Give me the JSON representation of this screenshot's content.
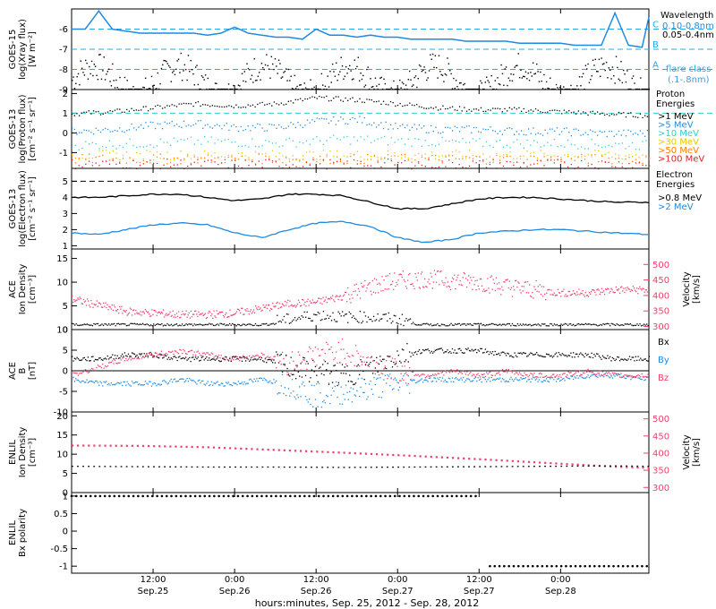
{
  "colors": {
    "black": "#000000",
    "blue": "#1f8ae0",
    "cyan": "#33cccc",
    "lightblue": "#2aa7e8",
    "yellow": "#e8c800",
    "orange": "#ff7f00",
    "red": "#e02020",
    "pink": "#f0406a"
  },
  "x_axis": {
    "tick_times": [
      "12:00",
      "0:00",
      "12:00",
      "0:00",
      "12:00",
      "0:00"
    ],
    "tick_dates": [
      "Sep.25",
      "Sep.26",
      "Sep.26",
      "Sep.27",
      "Sep.27",
      "Sep.28"
    ],
    "xlabel": "hours:minutes, Sep. 25, 2012 - Sep. 28, 2012"
  },
  "chart_data": [
    {
      "type": "line",
      "panel": "goes15-xray",
      "ylabel_line1": "GOES-15",
      "ylabel_line2": "log(Xray flux)",
      "ylabel_units": "[W m⁻²]",
      "ylim": [
        -9,
        -5
      ],
      "yticks": [
        -9,
        -8,
        -7,
        -6
      ],
      "legend_title": "Wavelength",
      "legend": [
        {
          "label": "0.10-0.8nm",
          "color": "#1f8ae0"
        },
        {
          "label": "0.05-0.4nm",
          "color": "#000000"
        }
      ],
      "reference_lines": [
        {
          "y": -6,
          "label": "C"
        },
        {
          "y": -7,
          "label": "B"
        },
        {
          "y": -8,
          "label": "A"
        }
      ],
      "note_line1": "flare class",
      "note_line2": "(.1-.8nm)",
      "series": [
        {
          "color": "#1f8ae0",
          "x": [
            0,
            2,
            4,
            6,
            8,
            10,
            12,
            14,
            16,
            18,
            20,
            22,
            24,
            26,
            28,
            30,
            32,
            34,
            36,
            38,
            40,
            42,
            44,
            46,
            48,
            50,
            52,
            54,
            56,
            58,
            60,
            62,
            64,
            66,
            68,
            70,
            72,
            74,
            76,
            78,
            80,
            82,
            84,
            85
          ],
          "y": [
            -6.0,
            -6.0,
            -5.1,
            -6.0,
            -6.1,
            -6.2,
            -6.2,
            -6.2,
            -6.2,
            -6.2,
            -6.3,
            -6.2,
            -5.9,
            -6.2,
            -6.3,
            -6.4,
            -6.4,
            -6.5,
            -6.0,
            -6.3,
            -6.3,
            -6.4,
            -6.3,
            -6.4,
            -6.4,
            -6.5,
            -6.5,
            -6.5,
            -6.5,
            -6.6,
            -6.6,
            -6.6,
            -6.6,
            -6.7,
            -6.7,
            -6.7,
            -6.7,
            -6.8,
            -6.8,
            -6.8,
            -5.2,
            -6.8,
            -6.9,
            -5.4
          ]
        }
      ]
    },
    {
      "type": "scatter",
      "panel": "goes13-proton",
      "ylabel_line1": "GOES-13",
      "ylabel_line2": "log(Proton flux)",
      "ylabel_units": "[cm⁻² s⁻¹ sr⁻¹]",
      "ylim": [
        -1.8,
        2.2
      ],
      "yticks": [
        -1,
        0,
        1,
        2
      ],
      "legend_title_line1": "Proton",
      "legend_title_line2": "Energies",
      "legend": [
        {
          "label": ">1 MeV",
          "color": "#000000"
        },
        {
          "label": ">5 MeV",
          "color": "#1f8ae0"
        },
        {
          "label": ">10 MeV",
          "color": "#33cccc"
        },
        {
          "label": ">30 MeV",
          "color": "#e8c800"
        },
        {
          "label": ">50 MeV",
          "color": "#ff7f00"
        },
        {
          "label": ">100 MeV",
          "color": "#e02020"
        }
      ],
      "reference_line": 1,
      "series": [
        {
          "name": ">1 MeV",
          "x": [
            0,
            6,
            12,
            18,
            24,
            30,
            36,
            42,
            48,
            54,
            60,
            66,
            72,
            78,
            85
          ],
          "y": [
            1.0,
            1.1,
            1.3,
            1.5,
            1.4,
            1.5,
            1.8,
            1.7,
            1.5,
            1.3,
            1.2,
            1.2,
            1.1,
            1.0,
            0.9
          ]
        },
        {
          "name": ">5 MeV",
          "x": [
            0,
            6,
            12,
            18,
            24,
            30,
            36,
            42,
            48,
            54,
            60,
            66,
            72,
            78,
            85
          ],
          "y": [
            0.1,
            0.2,
            0.4,
            0.5,
            0.3,
            0.3,
            0.6,
            0.7,
            0.3,
            0.2,
            0.2,
            0.1,
            0.1,
            0.0,
            0.0
          ]
        },
        {
          "name": ">10 MeV",
          "x": [
            0,
            10,
            20,
            30,
            40,
            50,
            60,
            70,
            85
          ],
          "y": [
            -0.6,
            -0.5,
            -0.4,
            -0.5,
            -0.3,
            -0.4,
            -0.5,
            -0.5,
            -0.6
          ]
        },
        {
          "name": ">30 MeV",
          "x": [
            0,
            10,
            20,
            30,
            40,
            50,
            60,
            70,
            85
          ],
          "y": [
            -1.1,
            -1.1,
            -1.1,
            -1.1,
            -1.1,
            -1.1,
            -1.1,
            -1.1,
            -1.1
          ]
        },
        {
          "name": ">50 MeV",
          "x": [
            0,
            10,
            20,
            30,
            40,
            50,
            60,
            70,
            85
          ],
          "y": [
            -1.3,
            -1.3,
            -1.3,
            -1.3,
            -1.3,
            -1.3,
            -1.3,
            -1.3,
            -1.3
          ]
        },
        {
          "name": ">100 MeV",
          "x": [
            0,
            10,
            20,
            30,
            40,
            50,
            60,
            70,
            85
          ],
          "y": [
            -1.55,
            -1.55,
            -1.55,
            -1.55,
            -1.55,
            -1.55,
            -1.55,
            -1.55,
            -1.55
          ]
        }
      ]
    },
    {
      "type": "line",
      "panel": "goes13-electron",
      "ylabel_line1": "GOES-13",
      "ylabel_line2": "log(Electron flux)",
      "ylabel_units": "[cm⁻² s⁻¹ sr⁻¹]",
      "ylim": [
        0.8,
        5.8
      ],
      "yticks": [
        1,
        2,
        3,
        4,
        5
      ],
      "legend_title_line1": "Electron",
      "legend_title_line2": "Energies",
      "legend": [
        {
          "label": ">0.8 MeV",
          "color": "#000000"
        },
        {
          "label": ">2 MeV",
          "color": "#1f8ae0"
        }
      ],
      "reference_line": 5,
      "series": [
        {
          "name": ">0.8 MeV",
          "x": [
            0,
            4,
            8,
            12,
            16,
            20,
            24,
            28,
            32,
            36,
            40,
            44,
            48,
            52,
            56,
            60,
            64,
            68,
            72,
            76,
            80,
            85
          ],
          "y": [
            4.0,
            4.0,
            4.1,
            4.2,
            4.2,
            4.0,
            3.8,
            3.9,
            4.2,
            4.2,
            4.1,
            3.7,
            3.3,
            3.3,
            3.6,
            3.9,
            4.0,
            4.0,
            3.9,
            3.8,
            3.7,
            3.7
          ]
        },
        {
          "name": ">2 MeV",
          "x": [
            0,
            4,
            8,
            12,
            16,
            20,
            24,
            28,
            32,
            36,
            40,
            44,
            48,
            52,
            56,
            60,
            64,
            68,
            72,
            76,
            80,
            85
          ],
          "y": [
            1.8,
            1.7,
            2.0,
            2.3,
            2.4,
            2.3,
            1.8,
            1.5,
            2.0,
            2.4,
            2.5,
            2.2,
            1.5,
            1.2,
            1.4,
            1.8,
            1.9,
            2.0,
            2.0,
            1.9,
            1.8,
            1.7
          ]
        }
      ]
    },
    {
      "type": "scatter",
      "panel": "ace-plasma",
      "ylabel_line1": "ACE",
      "ylabel_line2": "Ion Density",
      "ylabel_units": "[cm⁻³]",
      "ylim": [
        0,
        17
      ],
      "yticks": [
        0,
        5,
        10,
        15
      ],
      "ylabel_right_line1": "Velocity",
      "ylabel_right_line2": "[km/s]",
      "ylim_right": [
        290,
        550
      ],
      "yticks_right": [
        300,
        350,
        400,
        450,
        500
      ],
      "series": [
        {
          "name": "Ion Density",
          "color": "#000000",
          "x": [
            0,
            4,
            8,
            12,
            16,
            20,
            24,
            28,
            32,
            36,
            40,
            44,
            48,
            52,
            56,
            60,
            64,
            68,
            72,
            76,
            80,
            85
          ],
          "y": [
            1.0,
            1.0,
            1.0,
            1.0,
            1.0,
            1.0,
            1.0,
            1.0,
            1.5,
            2.5,
            2.0,
            2.0,
            1.5,
            1.0,
            1.0,
            1.0,
            1.0,
            1.0,
            1.0,
            1.0,
            1.0,
            1.0
          ]
        },
        {
          "name": "Velocity",
          "color": "#f0406a",
          "axis": "right",
          "x": [
            0,
            4,
            8,
            12,
            16,
            20,
            24,
            28,
            32,
            36,
            40,
            44,
            48,
            52,
            56,
            60,
            64,
            68,
            72,
            76,
            80,
            85
          ],
          "y": [
            390,
            370,
            350,
            345,
            340,
            340,
            345,
            360,
            375,
            380,
            400,
            430,
            450,
            455,
            450,
            445,
            430,
            420,
            410,
            410,
            420,
            420
          ]
        }
      ]
    },
    {
      "type": "scatter",
      "panel": "ace-magnetic",
      "ylabel_line1": "ACE",
      "ylabel_line2": "B",
      "ylabel_units": "[nT]",
      "ylim": [
        -10,
        10
      ],
      "yticks": [
        -10,
        -5,
        0,
        5,
        10
      ],
      "reference_line": 0,
      "legend": [
        {
          "label": "Bx",
          "color": "#000000"
        },
        {
          "label": "By",
          "color": "#1f8ae0"
        },
        {
          "label": "Bz",
          "color": "#f0406a"
        }
      ],
      "series": [
        {
          "name": "Bx",
          "x": [
            0,
            4,
            8,
            12,
            16,
            20,
            24,
            28,
            32,
            36,
            40,
            44,
            48,
            52,
            56,
            60,
            64,
            68,
            72,
            76,
            80,
            85
          ],
          "y": [
            3,
            3,
            4,
            4,
            3,
            3,
            3,
            3,
            1,
            0,
            -1,
            1,
            4,
            5,
            5,
            5,
            4,
            4,
            4,
            4,
            3,
            3
          ]
        },
        {
          "name": "By",
          "x": [
            0,
            4,
            8,
            12,
            16,
            20,
            24,
            28,
            32,
            36,
            40,
            44,
            48,
            52,
            56,
            60,
            64,
            68,
            72,
            76,
            80,
            85
          ],
          "y": [
            -2,
            -3,
            -3,
            -3,
            -2,
            -3,
            -3,
            -2,
            -3,
            -6,
            -5,
            -4,
            -3,
            -2,
            -2,
            -2,
            -2,
            -2,
            -2,
            -1,
            -1,
            -2
          ]
        },
        {
          "name": "Bz",
          "x": [
            0,
            4,
            8,
            12,
            16,
            20,
            24,
            28,
            32,
            36,
            40,
            44,
            48,
            52,
            56,
            60,
            64,
            68,
            72,
            76,
            80,
            85
          ],
          "y": [
            -1,
            1,
            3,
            4,
            5,
            4,
            3,
            4,
            2,
            4,
            5,
            2,
            0,
            -1,
            0,
            -1,
            0,
            -1,
            -1,
            0,
            -1,
            -1
          ]
        }
      ]
    },
    {
      "type": "scatter",
      "panel": "enlil-plasma",
      "ylabel_line1": "ENLIL",
      "ylabel_line2": "Ion Density",
      "ylabel_units": "[cm⁻³]",
      "ylim": [
        0,
        21
      ],
      "yticks": [
        0,
        5,
        10,
        15,
        20
      ],
      "ylabel_right_line1": "Velocity",
      "ylabel_right_line2": "[km/s]",
      "ylim_right": [
        285,
        520
      ],
      "yticks_right": [
        300,
        350,
        400,
        450,
        500
      ],
      "series": [
        {
          "name": "Ion Density",
          "color": "#000000",
          "x": [
            0,
            10,
            20,
            30,
            40,
            50,
            60,
            70,
            80,
            85
          ],
          "y": [
            7.0,
            6.9,
            6.8,
            6.8,
            6.7,
            6.8,
            6.9,
            7.0,
            7.1,
            7.0
          ]
        },
        {
          "name": "Velocity",
          "color": "#f0406a",
          "axis": "right",
          "x": [
            0,
            10,
            20,
            30,
            40,
            50,
            60,
            70,
            80,
            85
          ],
          "y": [
            425,
            424,
            420,
            412,
            404,
            395,
            385,
            374,
            363,
            360
          ]
        }
      ]
    },
    {
      "type": "scatter",
      "panel": "enlil-polarity",
      "ylabel_line1": "ENLIL",
      "ylabel_line2": "Bx polarity",
      "ylim": [
        -1.2,
        1.1
      ],
      "yticks": [
        -1.0,
        -0.5,
        0.0,
        0.5,
        1.0
      ],
      "series": [
        {
          "name": "Bx polarity",
          "x": [
            0,
            10,
            20,
            30,
            40,
            50,
            60,
            61,
            70,
            80,
            85
          ],
          "y": [
            1,
            1,
            1,
            1,
            1,
            1,
            1,
            -1,
            -1,
            -1,
            -1
          ]
        }
      ]
    }
  ]
}
